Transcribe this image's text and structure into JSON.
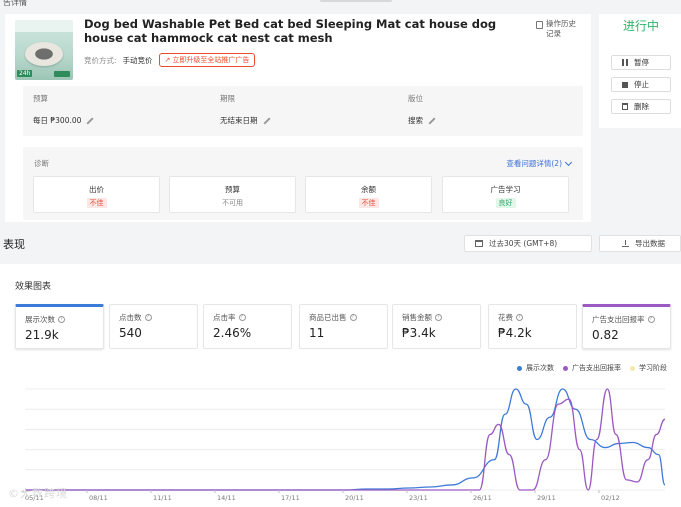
{
  "breadcrumb": "告详情",
  "product": {
    "title": "Dog bed Washable Pet Bed cat bed Sleeping Mat cat house dog house cat hammock cat nest cat mesh",
    "bid_method_label": "竞价方式:",
    "bid_method_value": "手动竞价",
    "upgrade_label": "立即升级至全站推广广告",
    "history_label": "操作历史记录"
  },
  "info": {
    "budget_label": "预算",
    "budget_value": "每日 ₱300.00",
    "period_label": "期限",
    "period_value": "无结束日期",
    "placement_label": "版位",
    "placement_value": "搜索"
  },
  "diagnosis": {
    "title": "诊断",
    "link": "查看问题详情(2)",
    "cards": [
      {
        "label": "出价",
        "status": "不佳",
        "kind": "bad"
      },
      {
        "label": "预算",
        "status": "不可用",
        "kind": "na"
      },
      {
        "label": "余额",
        "status": "不佳",
        "kind": "bad"
      },
      {
        "label": "广告学习",
        "status": "良好",
        "kind": "good"
      }
    ]
  },
  "side": {
    "status": "进行中",
    "pause": "暂停",
    "stop": "停止",
    "delete": "删除"
  },
  "performance": {
    "section_title": "表现",
    "date_range": "过去30天 (GMT+8)",
    "export": "导出数据",
    "chart_title": "效果图表",
    "metrics": [
      {
        "label": "展示次数",
        "value": "21.9k",
        "selected": "blue"
      },
      {
        "label": "点击数",
        "value": "540",
        "selected": ""
      },
      {
        "label": "点击率",
        "value": "2.46%",
        "selected": ""
      },
      {
        "label": "商品已出售",
        "value": "11",
        "selected": ""
      },
      {
        "label": "销售金额",
        "value": "₱3.4k",
        "selected": ""
      },
      {
        "label": "花费",
        "value": "₱4.2k",
        "selected": ""
      },
      {
        "label": "广告支出回报率",
        "value": "0.82",
        "selected": "purple"
      }
    ],
    "legend": [
      {
        "name": "展示次数",
        "color": "#3d7bd8"
      },
      {
        "name": "广告支出回报率",
        "color": "#9b59c2"
      },
      {
        "name": "学习阶段",
        "color": "#f3e9a8"
      }
    ]
  },
  "chart_data": {
    "type": "line",
    "x": [
      "05/11",
      "08/11",
      "11/11",
      "14/11",
      "17/11",
      "20/11",
      "23/11",
      "26/11",
      "29/11",
      "02/12"
    ],
    "series": [
      {
        "name": "展示次数",
        "color": "#3d7bd8",
        "points": [
          [
            0,
            0
          ],
          [
            3,
            0
          ],
          [
            6,
            0
          ],
          [
            9,
            0
          ],
          [
            12,
            0
          ],
          [
            15,
            0
          ],
          [
            16,
            0.01
          ],
          [
            17,
            0.01
          ],
          [
            18,
            0.02
          ],
          [
            19,
            0.03
          ],
          [
            20,
            0.05
          ],
          [
            21,
            0.12
          ],
          [
            22,
            0.3
          ],
          [
            22.5,
            0.75
          ],
          [
            23,
            1.0
          ],
          [
            23.5,
            0.85
          ],
          [
            24,
            0.5
          ],
          [
            24.6,
            0.72
          ],
          [
            25.2,
            1.0
          ],
          [
            25.8,
            0.8
          ],
          [
            26.5,
            0.5
          ],
          [
            27.2,
            0.42
          ],
          [
            27.8,
            0.46
          ],
          [
            28.5,
            0.47
          ],
          [
            29.2,
            0.42
          ],
          [
            29.7,
            0.35
          ],
          [
            30,
            0.05
          ]
        ]
      },
      {
        "name": "广告支出回报率",
        "color": "#9b59c2",
        "points": [
          [
            0,
            0
          ],
          [
            21.3,
            0
          ],
          [
            21.8,
            0.55
          ],
          [
            22.2,
            0.65
          ],
          [
            22.7,
            0.35
          ],
          [
            23.2,
            0
          ],
          [
            23.8,
            0.0
          ],
          [
            24.4,
            0.3
          ],
          [
            25,
            0.85
          ],
          [
            25.5,
            0.9
          ],
          [
            26,
            0.4
          ],
          [
            26.4,
            0.0
          ],
          [
            26.8,
            0.5
          ],
          [
            27.3,
            1.0
          ],
          [
            27.7,
            0.55
          ],
          [
            28.2,
            0.1
          ],
          [
            28.7,
            0.08
          ],
          [
            29.2,
            0.3
          ],
          [
            29.6,
            0.55
          ],
          [
            30,
            0.7
          ]
        ]
      }
    ]
  },
  "watermark": "©大数跨境"
}
